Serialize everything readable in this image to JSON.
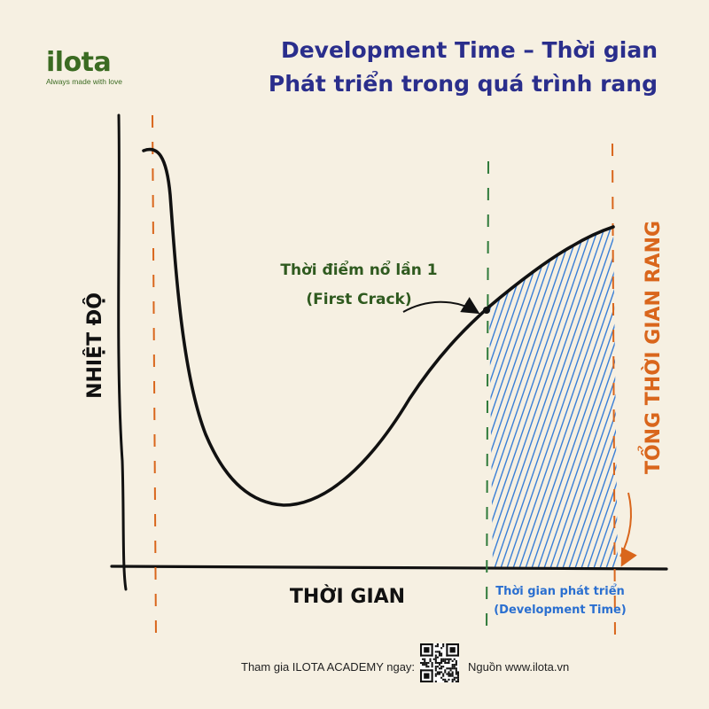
{
  "brand": {
    "name": "ilota",
    "tagline": "Always made with love"
  },
  "title": {
    "line1": "Development Time – Thời gian",
    "line2": "Phát triển trong quá trình rang"
  },
  "axes": {
    "y_label": "NHIỆT ĐỘ",
    "x_label": "THỜI GIAN"
  },
  "annotations": {
    "first_crack_line1": "Thời điểm nổ lần 1",
    "first_crack_line2": "(First Crack)",
    "dev_time_line1": "Thời gian phát triển",
    "dev_time_line2": "(Development Time)",
    "total_time": "TỔNG THỜI GIAN RANG"
  },
  "footer": {
    "cta": "Tham gia ILOTA ACADEMY ngay:",
    "source": "Nguồn www.ilota.vn"
  },
  "colors": {
    "background": "#f6f0e2",
    "title": "#2a2e8c",
    "brand": "#3b6b22",
    "first_crack": "#2f5a1f",
    "development": "#3a7fd6",
    "total_time": "#d9661c",
    "curve": "#111111"
  }
}
